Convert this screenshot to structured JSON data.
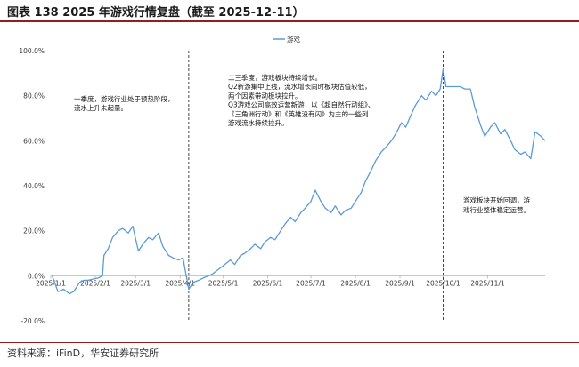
{
  "header": {
    "title": "图表 138 2025 年游戏行情复盘（截至 2025-12-11）"
  },
  "footer": {
    "source": "资料来源：iFinD，华安证券研究所"
  },
  "colors": {
    "series": "#5b9bd5",
    "accent": "#9a1b1b",
    "axis": "#bfbfbf",
    "divider": "#333333"
  },
  "chart_data": {
    "type": "line",
    "title": "",
    "xlabel": "",
    "ylabel": "",
    "legend": {
      "position": "top-center",
      "entries": [
        "游戏"
      ]
    },
    "grid": false,
    "ylim": [
      -20,
      100
    ],
    "yticks": [
      -20,
      0,
      20,
      40,
      60,
      80,
      100
    ],
    "ytick_labels": [
      "-20.0%",
      "0.0%",
      "20.0%",
      "40.0%",
      "60.0%",
      "80.0%",
      "100.0%"
    ],
    "xlim": [
      "2025-01-01",
      "2025-12-11"
    ],
    "xticks": [
      "2025-01-01",
      "2025-02-01",
      "2025-03-01",
      "2025-04-01",
      "2025-05-01",
      "2025-06-01",
      "2025-07-01",
      "2025-08-01",
      "2025-09-01",
      "2025-10-01",
      "2025-11-01"
    ],
    "xtick_labels": [
      "2025/1/1",
      "2025/2/1",
      "2025/3/1",
      "2025/4/1",
      "2025/5/1",
      "2025/6/1",
      "2025/7/1",
      "2025/8/1",
      "2025/9/1",
      "2025/10/1",
      "2025/11/1"
    ],
    "dividers": [
      "2025-04-07",
      "2025-10-01"
    ],
    "series": [
      {
        "name": "游戏",
        "points": [
          [
            "2025-01-02",
            0
          ],
          [
            "2025-01-06",
            -7
          ],
          [
            "2025-01-10",
            -6
          ],
          [
            "2025-01-14",
            -8
          ],
          [
            "2025-01-17",
            -7
          ],
          [
            "2025-01-21",
            -3
          ],
          [
            "2025-01-24",
            -2
          ],
          [
            "2025-01-27",
            -2
          ],
          [
            "2025-02-03",
            -1
          ],
          [
            "2025-02-06",
            0
          ],
          [
            "2025-02-07",
            9
          ],
          [
            "2025-02-10",
            12
          ],
          [
            "2025-02-13",
            17
          ],
          [
            "2025-02-17",
            20
          ],
          [
            "2025-02-20",
            21
          ],
          [
            "2025-02-24",
            19
          ],
          [
            "2025-02-27",
            22
          ],
          [
            "2025-03-03",
            11
          ],
          [
            "2025-03-06",
            14
          ],
          [
            "2025-03-10",
            17
          ],
          [
            "2025-03-13",
            16
          ],
          [
            "2025-03-17",
            19
          ],
          [
            "2025-03-20",
            13
          ],
          [
            "2025-03-24",
            9
          ],
          [
            "2025-03-27",
            8
          ],
          [
            "2025-03-31",
            7
          ],
          [
            "2025-04-03",
            8
          ],
          [
            "2025-04-07",
            -6
          ],
          [
            "2025-04-10",
            -3
          ],
          [
            "2025-04-14",
            -2
          ],
          [
            "2025-04-17",
            -1
          ],
          [
            "2025-04-21",
            0
          ],
          [
            "2025-04-24",
            1
          ],
          [
            "2025-04-28",
            3
          ],
          [
            "2025-05-02",
            5
          ],
          [
            "2025-05-06",
            7
          ],
          [
            "2025-05-09",
            5
          ],
          [
            "2025-05-13",
            9
          ],
          [
            "2025-05-16",
            10
          ],
          [
            "2025-05-20",
            12
          ],
          [
            "2025-05-23",
            14
          ],
          [
            "2025-05-27",
            12
          ],
          [
            "2025-05-30",
            15
          ],
          [
            "2025-06-03",
            17
          ],
          [
            "2025-06-06",
            16
          ],
          [
            "2025-06-10",
            20
          ],
          [
            "2025-06-13",
            23
          ],
          [
            "2025-06-17",
            26
          ],
          [
            "2025-06-20",
            24
          ],
          [
            "2025-06-24",
            28
          ],
          [
            "2025-06-27",
            30
          ],
          [
            "2025-07-01",
            33
          ],
          [
            "2025-07-04",
            38
          ],
          [
            "2025-07-08",
            33
          ],
          [
            "2025-07-11",
            30
          ],
          [
            "2025-07-15",
            28
          ],
          [
            "2025-07-18",
            31
          ],
          [
            "2025-07-22",
            27
          ],
          [
            "2025-07-25",
            29
          ],
          [
            "2025-07-29",
            30
          ],
          [
            "2025-08-01",
            33
          ],
          [
            "2025-08-05",
            37
          ],
          [
            "2025-08-08",
            42
          ],
          [
            "2025-08-12",
            47
          ],
          [
            "2025-08-15",
            51
          ],
          [
            "2025-08-19",
            55
          ],
          [
            "2025-08-22",
            57
          ],
          [
            "2025-08-26",
            60
          ],
          [
            "2025-08-29",
            63
          ],
          [
            "2025-09-02",
            68
          ],
          [
            "2025-09-05",
            66
          ],
          [
            "2025-09-09",
            72
          ],
          [
            "2025-09-12",
            76
          ],
          [
            "2025-09-16",
            80
          ],
          [
            "2025-09-19",
            78
          ],
          [
            "2025-09-23",
            82
          ],
          [
            "2025-09-26",
            80
          ],
          [
            "2025-09-29",
            83
          ],
          [
            "2025-10-01",
            92
          ],
          [
            "2025-10-03",
            84
          ],
          [
            "2025-10-09",
            84
          ],
          [
            "2025-10-13",
            84
          ],
          [
            "2025-10-16",
            83
          ],
          [
            "2025-10-20",
            83
          ],
          [
            "2025-10-23",
            75
          ],
          [
            "2025-10-27",
            67
          ],
          [
            "2025-10-30",
            62
          ],
          [
            "2025-11-03",
            66
          ],
          [
            "2025-11-06",
            68
          ],
          [
            "2025-11-10",
            63
          ],
          [
            "2025-11-13",
            65
          ],
          [
            "2025-11-17",
            60
          ],
          [
            "2025-11-20",
            56
          ],
          [
            "2025-11-24",
            54
          ],
          [
            "2025-11-27",
            55
          ],
          [
            "2025-12-01",
            52
          ],
          [
            "2025-12-04",
            64
          ],
          [
            "2025-12-08",
            62
          ],
          [
            "2025-12-11",
            60
          ]
        ]
      }
    ],
    "annotations": [
      {
        "id": "q1",
        "lines": [
          "一季度，游戏行业处于预热阶段，",
          "流水上升未起量。"
        ]
      },
      {
        "id": "q23",
        "lines": [
          "二三季度，游戏板块持续增长。",
          "Q2新游集中上线，流水增长同时板块估值较低，",
          "两个因素带动板块拉升。",
          "Q3游戏公司高效运营新游，以《超自然行动组》、",
          "《三角洲行动》和《英雄没有闪》为主的一些列",
          "游戏流水持续拉升。"
        ]
      },
      {
        "id": "q4",
        "lines": [
          "游戏板块开始回调，游",
          "戏行业整体稳定运营。"
        ]
      }
    ]
  }
}
